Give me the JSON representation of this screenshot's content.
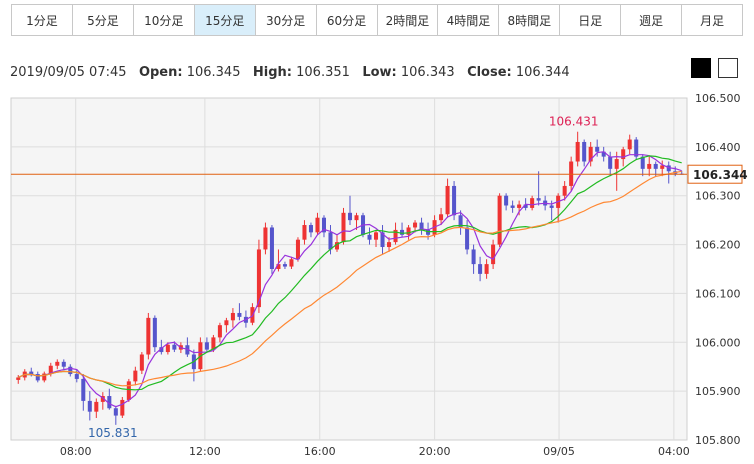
{
  "tabs": [
    {
      "label": "1分足",
      "active": false
    },
    {
      "label": "5分足",
      "active": false
    },
    {
      "label": "10分足",
      "active": false
    },
    {
      "label": "15分足",
      "active": true
    },
    {
      "label": "30分足",
      "active": false
    },
    {
      "label": "60分足",
      "active": false
    },
    {
      "label": "2時間足",
      "active": false
    },
    {
      "label": "4時間足",
      "active": false
    },
    {
      "label": "8時間足",
      "active": false
    },
    {
      "label": "日足",
      "active": false
    },
    {
      "label": "週足",
      "active": false
    },
    {
      "label": "月足",
      "active": false
    }
  ],
  "ohlc": {
    "datetime": "2019/09/05 07:45",
    "open_label": "Open:",
    "open": "106.345",
    "high_label": "High:",
    "high": "106.351",
    "low_label": "Low:",
    "low": "106.343",
    "close_label": "Close:",
    "close": "106.344"
  },
  "theme_buttons": {
    "dark": "black-square",
    "light": "white-square"
  },
  "colors": {
    "up": "#ee3333",
    "down": "#5555cc",
    "ma_short": "#9933dd",
    "ma_mid": "#22bb22",
    "ma_long": "#ff8833",
    "current_line": "#e06010",
    "high_label": "#dd2255",
    "low_label": "#3366aa"
  },
  "chart_data": {
    "type": "candlestick",
    "ylim": [
      105.8,
      106.5
    ],
    "yticks": [
      "106.500",
      "106.400",
      "106.300",
      "106.200",
      "106.100",
      "106.000",
      "105.900",
      "105.800"
    ],
    "xticks": [
      "08:00",
      "12:00",
      "16:00",
      "20:00",
      "09/05",
      "04:00"
    ],
    "current_price": "106.344",
    "high_annotation": "106.431",
    "low_annotation": "105.831",
    "candles": [
      [
        105.923,
        105.933,
        105.915,
        105.928
      ],
      [
        105.928,
        105.945,
        105.922,
        105.94
      ],
      [
        105.94,
        105.948,
        105.93,
        105.935
      ],
      [
        105.935,
        105.94,
        105.918,
        105.922
      ],
      [
        105.922,
        105.94,
        105.918,
        105.936
      ],
      [
        105.936,
        105.958,
        105.93,
        105.952
      ],
      [
        105.952,
        105.965,
        105.945,
        105.96
      ],
      [
        105.96,
        105.965,
        105.945,
        105.95
      ],
      [
        105.95,
        105.955,
        105.93,
        105.935
      ],
      [
        105.935,
        105.945,
        105.918,
        105.925
      ],
      [
        105.925,
        105.935,
        105.86,
        105.88
      ],
      [
        105.88,
        105.9,
        105.84,
        105.858
      ],
      [
        105.858,
        105.885,
        105.845,
        105.878
      ],
      [
        105.878,
        105.898,
        105.862,
        105.89
      ],
      [
        105.89,
        105.905,
        105.862,
        105.865
      ],
      [
        105.865,
        105.87,
        105.831,
        105.85
      ],
      [
        105.85,
        105.888,
        105.845,
        105.882
      ],
      [
        105.882,
        105.925,
        105.878,
        105.92
      ],
      [
        105.92,
        105.95,
        105.912,
        105.942
      ],
      [
        105.942,
        105.98,
        105.935,
        105.975
      ],
      [
        105.975,
        106.06,
        105.965,
        106.05
      ],
      [
        106.05,
        106.055,
        105.98,
        105.99
      ],
      [
        105.99,
        106.005,
        105.975,
        105.98
      ],
      [
        105.98,
        106.0,
        105.975,
        105.995
      ],
      [
        105.995,
        106.002,
        105.98,
        105.985
      ],
      [
        105.985,
        106.0,
        105.978,
        105.994
      ],
      [
        105.994,
        106.01,
        105.97,
        105.975
      ],
      [
        105.975,
        105.985,
        105.92,
        105.945
      ],
      [
        105.945,
        106.01,
        105.94,
        106.0
      ],
      [
        106.0,
        106.01,
        105.98,
        105.985
      ],
      [
        105.985,
        106.015,
        105.98,
        106.01
      ],
      [
        106.01,
        106.04,
        106.0,
        106.035
      ],
      [
        106.035,
        106.05,
        106.02,
        106.045
      ],
      [
        106.045,
        106.07,
        106.03,
        106.06
      ],
      [
        106.06,
        106.08,
        106.045,
        106.052
      ],
      [
        106.052,
        106.065,
        106.03,
        106.04
      ],
      [
        106.04,
        106.08,
        106.035,
        106.072
      ],
      [
        106.072,
        106.21,
        106.06,
        106.19
      ],
      [
        106.19,
        106.245,
        106.18,
        106.235
      ],
      [
        106.235,
        106.24,
        106.14,
        106.15
      ],
      [
        106.15,
        106.19,
        106.145,
        106.16
      ],
      [
        106.16,
        106.165,
        106.15,
        106.155
      ],
      [
        106.155,
        106.175,
        106.15,
        106.17
      ],
      [
        106.17,
        106.215,
        106.165,
        106.21
      ],
      [
        106.21,
        106.25,
        106.2,
        106.24
      ],
      [
        106.24,
        106.245,
        106.215,
        106.225
      ],
      [
        106.225,
        106.265,
        106.22,
        106.255
      ],
      [
        106.255,
        106.26,
        106.215,
        106.225
      ],
      [
        106.225,
        106.24,
        106.18,
        106.19
      ],
      [
        106.19,
        106.22,
        106.185,
        106.205
      ],
      [
        106.205,
        106.275,
        106.2,
        106.265
      ],
      [
        106.265,
        106.3,
        106.24,
        106.25
      ],
      [
        106.25,
        106.265,
        106.23,
        106.26
      ],
      [
        106.26,
        106.265,
        106.215,
        106.22
      ],
      [
        106.22,
        106.235,
        106.2,
        106.21
      ],
      [
        106.21,
        106.23,
        106.195,
        106.225
      ],
      [
        106.225,
        106.24,
        106.18,
        106.195
      ],
      [
        106.195,
        106.215,
        106.185,
        106.205
      ],
      [
        106.205,
        106.245,
        106.2,
        106.23
      ],
      [
        106.23,
        106.245,
        106.215,
        106.22
      ],
      [
        106.22,
        106.24,
        106.21,
        106.235
      ],
      [
        106.235,
        106.25,
        106.225,
        106.245
      ],
      [
        106.245,
        106.255,
        106.22,
        106.23
      ],
      [
        106.23,
        106.245,
        106.21,
        106.22
      ],
      [
        106.22,
        106.26,
        106.215,
        106.25
      ],
      [
        106.25,
        106.275,
        106.24,
        106.262
      ],
      [
        106.262,
        106.335,
        106.255,
        106.32
      ],
      [
        106.32,
        106.33,
        106.25,
        106.26
      ],
      [
        106.26,
        106.27,
        106.22,
        106.235
      ],
      [
        106.235,
        106.25,
        106.18,
        106.19
      ],
      [
        106.19,
        106.2,
        106.14,
        106.16
      ],
      [
        106.16,
        106.175,
        106.125,
        106.14
      ],
      [
        106.14,
        106.17,
        106.13,
        106.16
      ],
      [
        106.16,
        106.21,
        106.15,
        106.2
      ],
      [
        106.2,
        106.305,
        106.195,
        106.3
      ],
      [
        106.3,
        106.305,
        106.27,
        106.28
      ],
      [
        106.28,
        106.29,
        106.265,
        106.275
      ],
      [
        106.275,
        106.29,
        106.26,
        106.282
      ],
      [
        106.282,
        106.295,
        106.27,
        106.275
      ],
      [
        106.275,
        106.3,
        106.27,
        106.295
      ],
      [
        106.295,
        106.35,
        106.28,
        106.29
      ],
      [
        106.29,
        106.3,
        106.27,
        106.28
      ],
      [
        106.28,
        106.29,
        106.25,
        106.275
      ],
      [
        106.275,
        106.305,
        106.245,
        106.3
      ],
      [
        106.3,
        106.33,
        106.29,
        106.32
      ],
      [
        106.32,
        106.38,
        106.31,
        106.37
      ],
      [
        106.37,
        106.431,
        106.36,
        106.41
      ],
      [
        106.41,
        106.415,
        106.36,
        106.37
      ],
      [
        106.37,
        106.41,
        106.36,
        106.4
      ],
      [
        106.4,
        106.415,
        106.38,
        106.39
      ],
      [
        106.39,
        106.4,
        106.37,
        106.38
      ],
      [
        106.38,
        106.39,
        106.34,
        106.355
      ],
      [
        106.355,
        106.39,
        106.31,
        106.375
      ],
      [
        106.375,
        106.4,
        106.36,
        106.395
      ],
      [
        106.395,
        106.425,
        106.385,
        106.415
      ],
      [
        106.415,
        106.42,
        106.375,
        106.38
      ],
      [
        106.38,
        106.385,
        106.34,
        106.355
      ],
      [
        106.355,
        106.38,
        106.34,
        106.365
      ],
      [
        106.365,
        106.37,
        106.34,
        106.355
      ],
      [
        106.355,
        106.372,
        106.34,
        106.362
      ],
      [
        106.362,
        106.37,
        106.325,
        106.35
      ],
      [
        106.35,
        106.36,
        106.34,
        106.345
      ],
      [
        106.345,
        106.351,
        106.343,
        106.344
      ]
    ]
  }
}
